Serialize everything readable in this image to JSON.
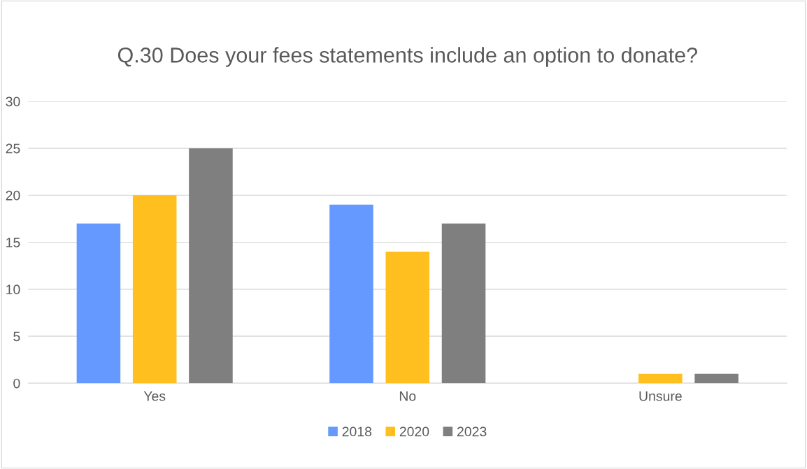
{
  "chart_data": {
    "type": "bar",
    "title": "Q.30 Does your fees statements include an option to donate?",
    "categories": [
      "Yes",
      "No",
      "Unsure"
    ],
    "series": [
      {
        "name": "2018",
        "color": "#6699ff",
        "values": [
          17,
          19,
          0
        ]
      },
      {
        "name": "2020",
        "color": "#ffc01f",
        "values": [
          20,
          14,
          1
        ]
      },
      {
        "name": "2023",
        "color": "#7f7f7f",
        "values": [
          25,
          17,
          1
        ]
      }
    ],
    "ylim": [
      0,
      30
    ],
    "yticks": [
      0,
      5,
      10,
      15,
      20,
      25,
      30
    ],
    "grid": "y",
    "legend": "bottom"
  }
}
